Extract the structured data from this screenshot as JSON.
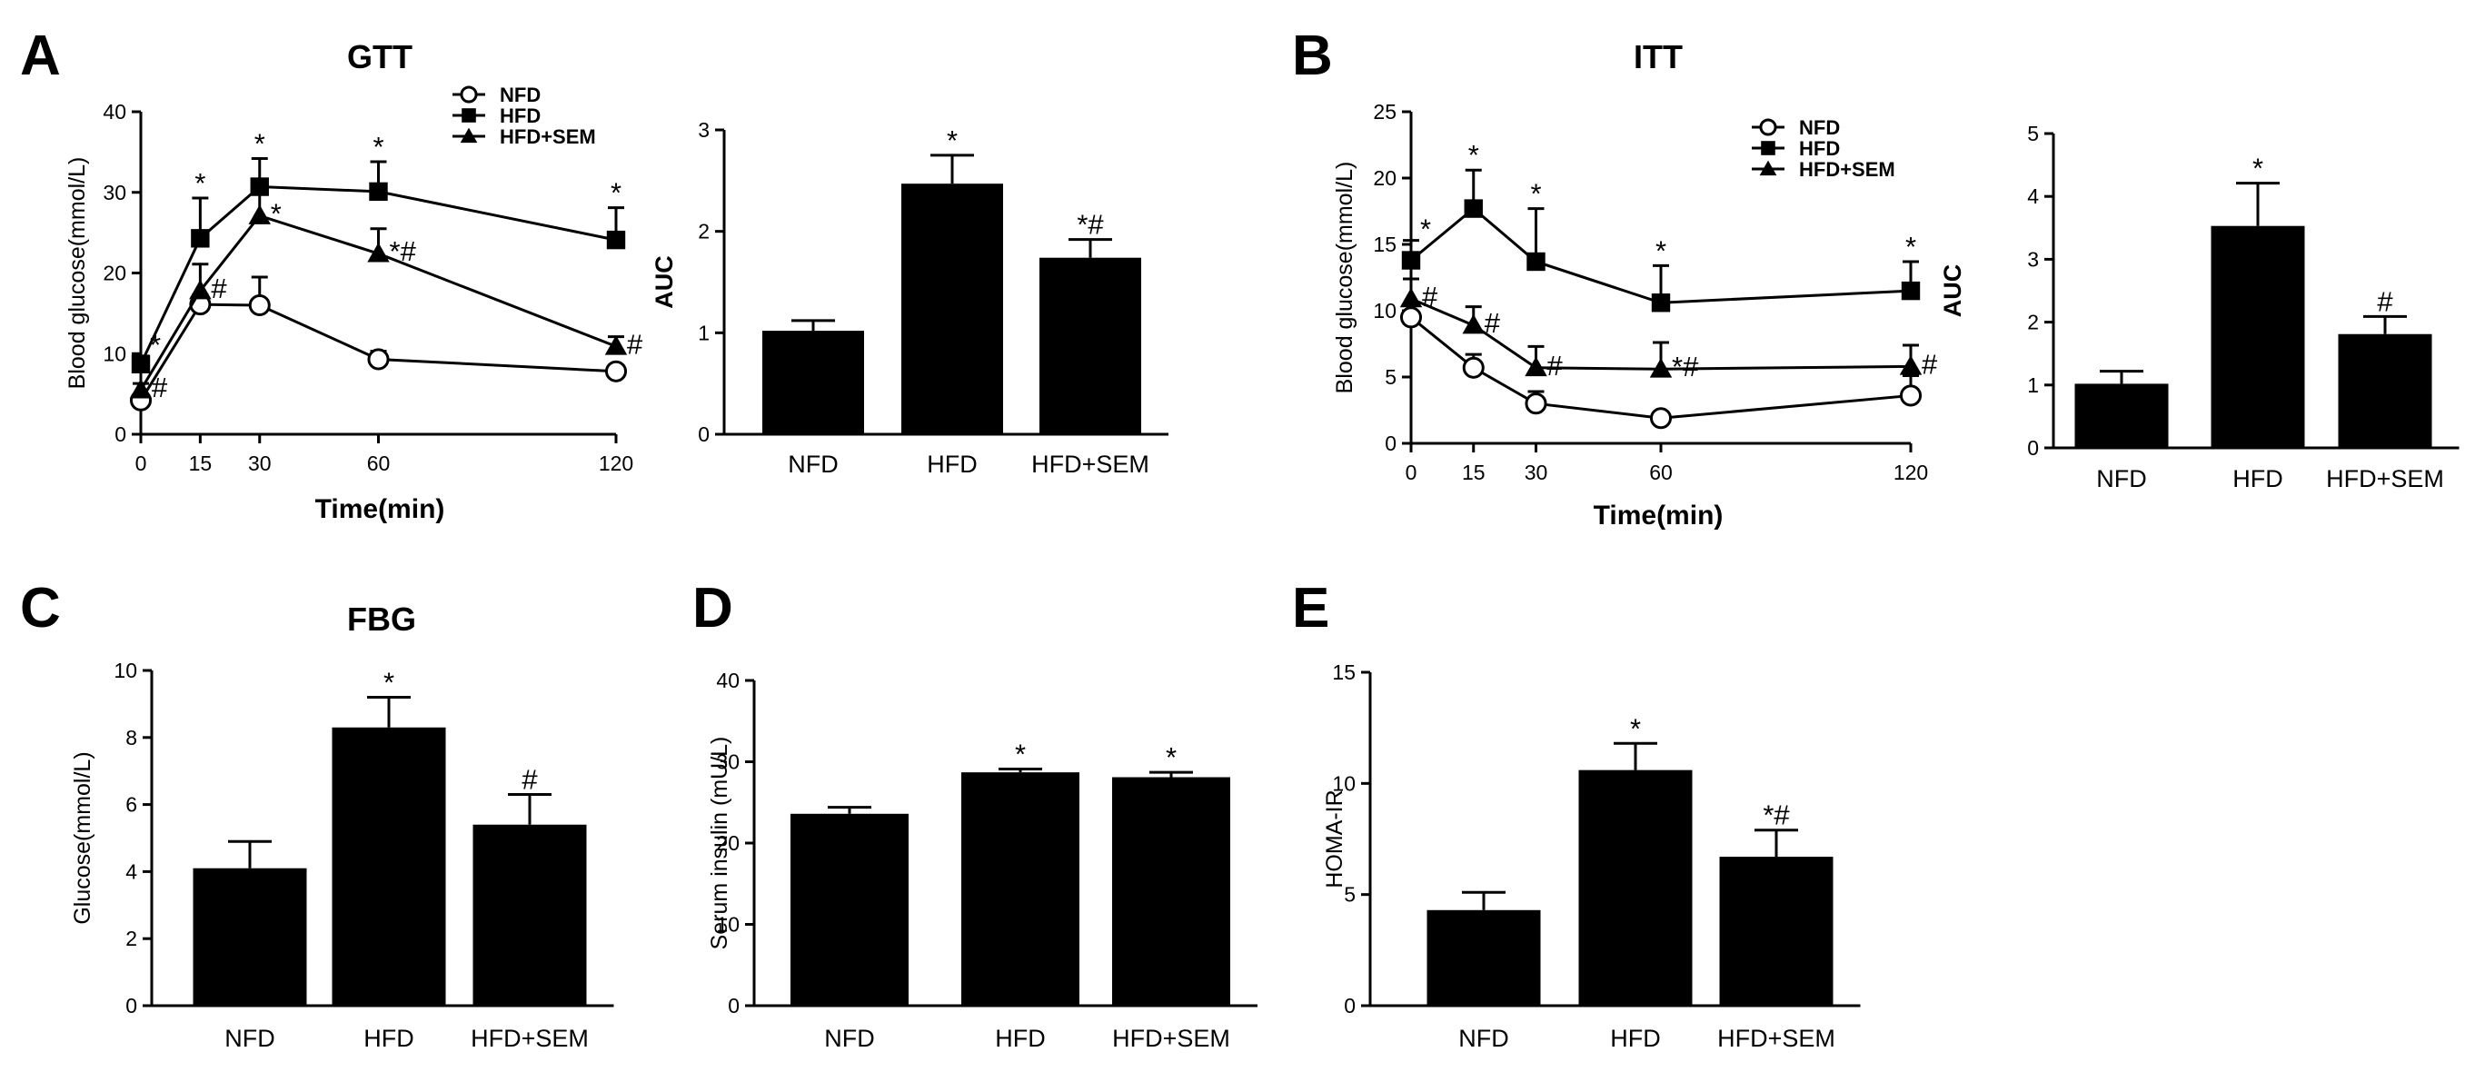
{
  "chart_data": [
    {
      "id": "A_line",
      "panel": "A",
      "type": "line",
      "title": "GTT",
      "xlabel": "Time(min)",
      "ylabel": "Blood glucose(mmol/L)",
      "x": [
        0,
        15,
        30,
        60,
        120
      ],
      "xticks": [
        0,
        15,
        30,
        60,
        120
      ],
      "ylim": [
        0,
        40
      ],
      "yticks": [
        0,
        10,
        20,
        30,
        40
      ],
      "legend": "top-right",
      "series": [
        {
          "name": "NFD",
          "marker": "circle",
          "values": [
            4.2,
            16.1,
            16.0,
            9.3,
            7.8
          ],
          "errors": [
            0.6,
            1.2,
            3.5,
            1.0,
            0.5
          ],
          "sig": [
            "",
            "",
            "",
            "",
            ""
          ]
        },
        {
          "name": "HFD",
          "marker": "square",
          "values": [
            8.7,
            24.3,
            30.7,
            30.1,
            24.1
          ],
          "errors": [
            1.0,
            5.0,
            3.5,
            3.7,
            4.0
          ],
          "sig": [
            "*",
            "*",
            "*",
            "*",
            "*"
          ]
        },
        {
          "name": "HFD+SEM",
          "marker": "triangle",
          "values": [
            5.5,
            17.8,
            27.1,
            22.4,
            10.9
          ],
          "errors": [
            0.8,
            3.3,
            3.0,
            3.1,
            1.2
          ],
          "sig": [
            "#",
            "#",
            "*",
            "*#",
            "#"
          ]
        }
      ]
    },
    {
      "id": "A_bar",
      "panel": "A",
      "type": "bar",
      "ylabel": "AUC",
      "categories": [
        "NFD",
        "HFD",
        "HFD+SEM"
      ],
      "values": [
        1.02,
        2.47,
        1.74
      ],
      "errors": [
        0.1,
        0.28,
        0.18
      ],
      "sig": [
        "",
        "*",
        "*#"
      ],
      "ylim": [
        0,
        3
      ],
      "yticks": [
        0,
        1,
        2,
        3
      ]
    },
    {
      "id": "B_line",
      "panel": "B",
      "type": "line",
      "title": "ITT",
      "xlabel": "Time(min)",
      "ylabel": "Blood glucose(mmol/L)",
      "x": [
        0,
        15,
        30,
        60,
        120
      ],
      "xticks": [
        0,
        15,
        30,
        60,
        120
      ],
      "ylim": [
        0,
        25
      ],
      "yticks": [
        0,
        5,
        10,
        15,
        20,
        25
      ],
      "legend": "top-right",
      "series": [
        {
          "name": "NFD",
          "marker": "circle",
          "values": [
            9.5,
            5.7,
            3.0,
            1.9,
            3.6
          ],
          "errors": [
            1.0,
            1.0,
            0.9,
            0.3,
            1.5
          ],
          "sig": [
            "",
            "",
            "",
            "",
            ""
          ]
        },
        {
          "name": "HFD",
          "marker": "square",
          "values": [
            13.8,
            17.7,
            13.7,
            10.6,
            11.5
          ],
          "errors": [
            1.5,
            2.9,
            4.0,
            2.8,
            2.2
          ],
          "sig": [
            "*",
            "*",
            "*",
            "*",
            "*"
          ]
        },
        {
          "name": "HFD+SEM",
          "marker": "triangle",
          "values": [
            10.9,
            8.9,
            5.7,
            5.6,
            5.8
          ],
          "errors": [
            1.5,
            1.4,
            1.6,
            2.0,
            1.6
          ],
          "sig": [
            "#",
            "#",
            "#",
            "*#",
            "#"
          ]
        }
      ]
    },
    {
      "id": "B_bar",
      "panel": "B",
      "type": "bar",
      "ylabel": "AUC",
      "categories": [
        "NFD",
        "HFD",
        "HFD+SEM"
      ],
      "values": [
        1.02,
        3.53,
        1.81
      ],
      "errors": [
        0.2,
        0.68,
        0.28
      ],
      "sig": [
        "",
        "*",
        "#"
      ],
      "ylim": [
        0,
        5
      ],
      "yticks": [
        0,
        1,
        2,
        3,
        4,
        5
      ]
    },
    {
      "id": "C",
      "panel": "C",
      "type": "bar",
      "title": "FBG",
      "ylabel": "Glucose(mmol/L)",
      "categories": [
        "NFD",
        "HFD",
        "HFD+SEM"
      ],
      "values": [
        4.1,
        8.3,
        5.4
      ],
      "errors": [
        0.8,
        0.9,
        0.9
      ],
      "sig": [
        "",
        "*",
        "#"
      ],
      "ylim": [
        0,
        10
      ],
      "yticks": [
        0,
        2,
        4,
        6,
        8,
        10
      ]
    },
    {
      "id": "D",
      "panel": "D",
      "type": "bar",
      "ylabel": "Serum insulin (mU/L)",
      "categories": [
        "NFD",
        "HFD",
        "HFD+SEM"
      ],
      "values": [
        23.6,
        28.7,
        28.1
      ],
      "errors": [
        0.8,
        0.4,
        0.6
      ],
      "sig": [
        "",
        "*",
        "*"
      ],
      "ylim": [
        0,
        40
      ],
      "yticks": [
        0,
        10,
        20,
        30,
        40
      ]
    },
    {
      "id": "E",
      "panel": "E",
      "type": "bar",
      "ylabel": "HOMA-IR",
      "categories": [
        "NFD",
        "HFD",
        "HFD+SEM"
      ],
      "values": [
        4.3,
        10.6,
        6.7
      ],
      "errors": [
        0.8,
        1.2,
        1.2
      ],
      "sig": [
        "",
        "*",
        "*#"
      ],
      "ylim": [
        0,
        15
      ],
      "yticks": [
        0,
        5,
        10,
        15
      ]
    }
  ]
}
